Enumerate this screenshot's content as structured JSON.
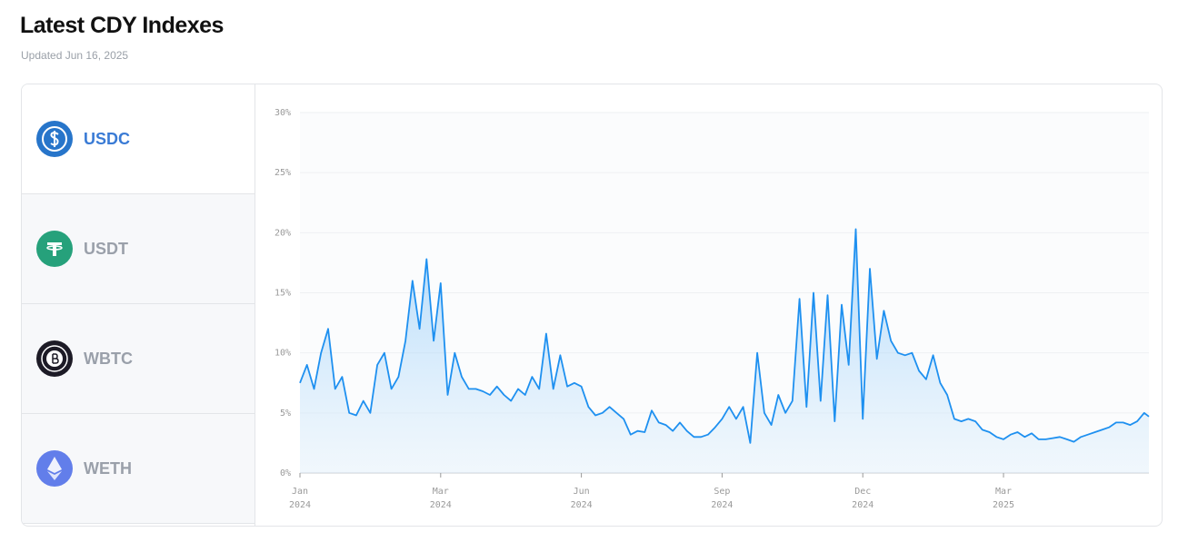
{
  "header": {
    "title": "Latest CDY Indexes",
    "subtitle": "Updated Jun 16, 2025"
  },
  "tabs": [
    {
      "label": "USDC",
      "selected": true
    },
    {
      "label": "USDT",
      "selected": false
    },
    {
      "label": "WBTC",
      "selected": false
    },
    {
      "label": "WETH",
      "selected": false
    }
  ],
  "chart_data": {
    "type": "area",
    "color": "#1e90f0",
    "grid": true,
    "x": [
      0,
      3,
      6,
      9,
      12,
      15,
      18,
      21,
      24,
      27,
      30,
      33,
      36,
      39,
      42,
      45,
      48,
      51,
      54,
      57,
      60,
      63,
      66,
      69,
      72,
      75,
      78,
      81,
      84,
      87,
      90,
      93,
      96,
      99,
      102,
      105,
      108,
      111,
      114,
      117,
      120,
      123,
      126,
      129,
      132,
      135,
      138,
      141,
      144,
      147,
      150,
      153,
      156,
      159,
      162,
      165,
      168,
      171,
      174,
      177,
      180,
      183,
      186,
      189,
      192,
      195,
      198,
      201,
      204,
      207,
      210,
      213,
      216,
      219,
      222,
      225,
      228,
      231,
      234,
      237,
      240,
      243,
      246,
      249,
      252,
      255,
      258,
      261,
      264,
      267,
      270,
      273,
      276,
      279,
      282,
      285,
      288,
      291,
      294,
      297,
      300,
      303,
      306,
      309,
      312,
      315,
      318,
      321,
      324,
      327,
      330,
      333,
      336,
      339,
      342,
      345,
      348,
      351,
      354,
      357,
      360,
      362
    ],
    "values": [
      7.5,
      9,
      7,
      10,
      12,
      7,
      8,
      5,
      4.8,
      6,
      5,
      9,
      10,
      7,
      8,
      11,
      16,
      12,
      17.8,
      11,
      15.8,
      6.5,
      10,
      8,
      7,
      7,
      6.8,
      6.5,
      7.2,
      6.5,
      6,
      7,
      6.5,
      8,
      7,
      11.6,
      7,
      9.8,
      7.2,
      7.5,
      7.2,
      5.5,
      4.8,
      5,
      5.5,
      5,
      4.5,
      3.2,
      3.5,
      3.4,
      5.2,
      4.2,
      4,
      3.5,
      4.2,
      3.5,
      3,
      3,
      3.2,
      3.8,
      4.5,
      5.5,
      4.5,
      5.5,
      2.5,
      10,
      5,
      4,
      6.5,
      5,
      6,
      14.5,
      5.5,
      15,
      6,
      14.8,
      4.3,
      14,
      9,
      20.3,
      4.5,
      17,
      9.5,
      13.5,
      11,
      10,
      9.8,
      10,
      8.5,
      7.8,
      9.8,
      7.5,
      6.5,
      4.5,
      4.3,
      4.5,
      4.3,
      3.6,
      3.4,
      3,
      2.8,
      3.2,
      3.4,
      3,
      3.3,
      2.8,
      2.8,
      2.9,
      3,
      2.8,
      2.6,
      3,
      3.2,
      3.4,
      3.6,
      3.8,
      4.2,
      4.2,
      4,
      4.3,
      5,
      4.7
    ],
    "xlim": [
      0,
      362
    ],
    "xticks": [
      {
        "value": 0,
        "label": "Jan 2024"
      },
      {
        "value": 60,
        "label": "Mar 2024"
      },
      {
        "value": 120,
        "label": "Jun 2024"
      },
      {
        "value": 180,
        "label": "Sep 2024"
      },
      {
        "value": 240,
        "label": "Dec 2024"
      },
      {
        "value": 300,
        "label": "Mar 2025"
      }
    ],
    "ylim": [
      0,
      30
    ],
    "yticks": [
      {
        "value": 0,
        "label": "0%"
      },
      {
        "value": 5,
        "label": "5%"
      },
      {
        "value": 10,
        "label": "10%"
      },
      {
        "value": 15,
        "label": "15%"
      },
      {
        "value": 20,
        "label": "20%"
      },
      {
        "value": 25,
        "label": "25%"
      },
      {
        "value": 30,
        "label": "30%"
      }
    ]
  }
}
